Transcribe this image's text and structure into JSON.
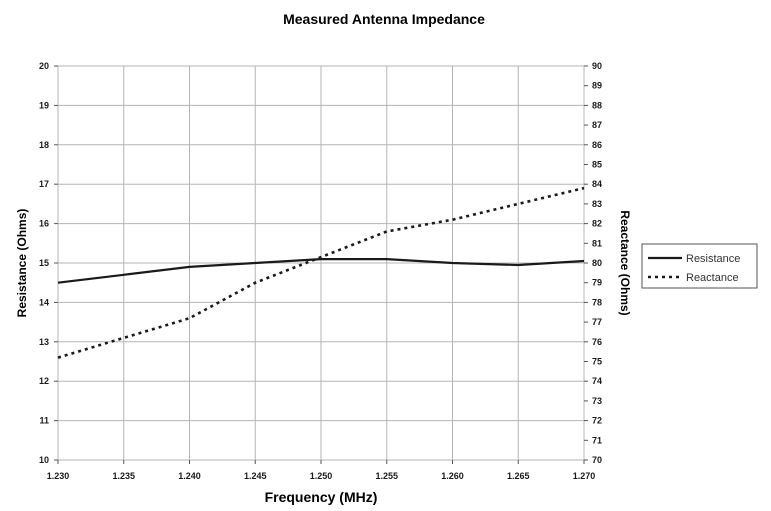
{
  "chart_data": {
    "type": "line",
    "title": "Measured Antenna Impedance",
    "xlabel": "Frequency (MHz)",
    "ylabel_left": "Resistance (Ohms)",
    "ylabel_right": "Reactance (Ohms)",
    "x": [
      1.23,
      1.235,
      1.24,
      1.245,
      1.25,
      1.255,
      1.26,
      1.265,
      1.27
    ],
    "x_tick_labels": [
      "1.230",
      "1.235",
      "1.240",
      "1.245",
      "1.250",
      "1.255",
      "1.260",
      "1.265",
      "1.270"
    ],
    "xlim": [
      1.23,
      1.27
    ],
    "ylim_left": [
      10,
      20
    ],
    "ylim_right": [
      70,
      90
    ],
    "y_left_ticks": [
      10,
      11,
      12,
      13,
      14,
      15,
      16,
      17,
      18,
      19,
      20
    ],
    "y_right_ticks": [
      70,
      71,
      72,
      73,
      74,
      75,
      76,
      77,
      78,
      79,
      80,
      81,
      82,
      83,
      84,
      85,
      86,
      87,
      88,
      89,
      90
    ],
    "grid": true,
    "legend_position": "right",
    "series": [
      {
        "name": "Resistance",
        "axis": "left",
        "style": "solid",
        "color": "#1a1a1a",
        "values": [
          14.5,
          14.7,
          14.9,
          15.0,
          15.1,
          15.1,
          15.0,
          14.95,
          15.05
        ]
      },
      {
        "name": "Reactance",
        "axis": "right",
        "style": "dotted",
        "color": "#1a1a1a",
        "values": [
          75.2,
          76.2,
          77.2,
          79.0,
          80.3,
          81.6,
          82.2,
          83.0,
          83.8
        ]
      }
    ]
  }
}
